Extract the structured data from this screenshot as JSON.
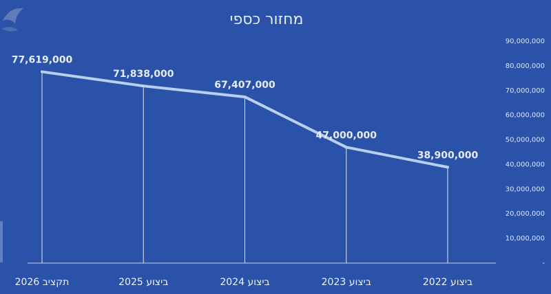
{
  "chart_data": {
    "type": "line",
    "title": "מחזור כספי",
    "categories": [
      "תקציב 2026",
      "ביצוע 2025",
      "ביצוע 2024",
      "ביצוע 2023",
      "ביצוע 2022"
    ],
    "series": [
      {
        "values": [
          77619000,
          71838000,
          67407000,
          47000000,
          38900000
        ]
      }
    ],
    "data_labels": [
      "77,619,000",
      "71,838,000",
      "67,407,000",
      "47,000,000",
      "38,900,000"
    ],
    "y_ticks": [
      "-",
      "10,000,000",
      "20,000,000",
      "30,000,000",
      "40,000,000",
      "50,000,000",
      "60,000,000",
      "70,000,000",
      "80,000,000",
      "90,000,000"
    ],
    "ylim": [
      0,
      90000000
    ],
    "y_axis_side": "right",
    "drop_lines": true,
    "grid": false,
    "colors": {
      "background": "#2a52a8",
      "line": "#b9cfee",
      "text": "#e6edfa"
    }
  }
}
